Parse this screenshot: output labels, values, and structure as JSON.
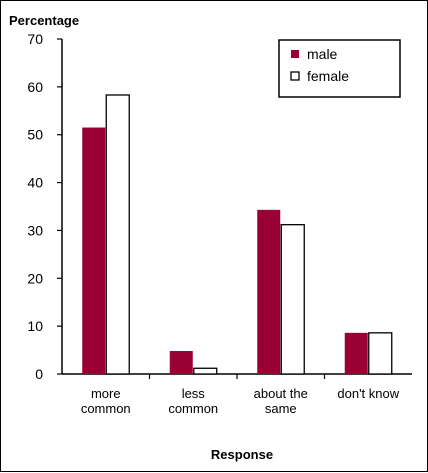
{
  "chart_data": {
    "type": "bar",
    "title": "",
    "ylabel": "Percentage",
    "xlabel": "Response",
    "ylim": [
      0,
      70
    ],
    "yticks": [
      0,
      10,
      20,
      30,
      40,
      50,
      60,
      70
    ],
    "grid": false,
    "legend_position": "top-right",
    "categories": [
      [
        "more",
        "common"
      ],
      [
        "less",
        "common"
      ],
      [
        "about the",
        "same"
      ],
      [
        "don't know"
      ]
    ],
    "series": [
      {
        "name": "male",
        "values": [
          51.5,
          4.8,
          34.3,
          8.6
        ],
        "color": "#990033",
        "fill": "#990033"
      },
      {
        "name": "female",
        "values": [
          58.3,
          1.2,
          31.2,
          8.6
        ],
        "color": "#000000",
        "fill": "#ffffff"
      }
    ]
  }
}
